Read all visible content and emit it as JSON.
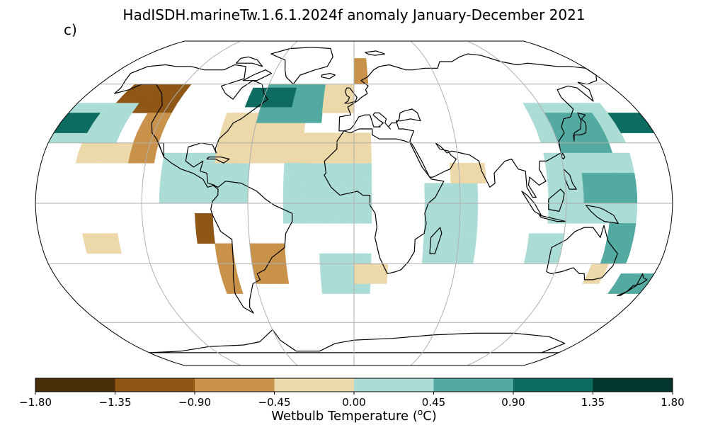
{
  "title": "HadISDH.marineTw.1.6.1.2024f anomaly January-December 2021",
  "panel_label": "c)",
  "colorbar": {
    "title_prefix": "Wetbulb Temperature (",
    "title_sup": "o",
    "title_suffix": "C)",
    "ticks": [
      "−1.80",
      "−1.35",
      "−0.90",
      "−0.45",
      "0.00",
      "0.45",
      "0.90",
      "1.35",
      "1.80"
    ],
    "bins": [
      {
        "range": [
          -1.8,
          -1.35
        ],
        "color": "#4a2e0a"
      },
      {
        "range": [
          -1.35,
          -0.9
        ],
        "color": "#8f5716"
      },
      {
        "range": [
          -0.9,
          -0.45
        ],
        "color": "#c8924a"
      },
      {
        "range": [
          -0.45,
          0.0
        ],
        "color": "#ecd8a8"
      },
      {
        "range": [
          0.0,
          0.45
        ],
        "color": "#abddd6"
      },
      {
        "range": [
          0.45,
          0.9
        ],
        "color": "#52aaa1"
      },
      {
        "range": [
          0.9,
          1.35
        ],
        "color": "#0e6b60"
      },
      {
        "range": [
          1.35,
          1.8
        ],
        "color": "#01352d"
      }
    ]
  },
  "map_data": {
    "projection": "Robinson",
    "variable": "wet bulb temperature anomaly",
    "grid_spacing_deg": 5,
    "graticule": {
      "lon_step": 60,
      "lat_step": 30
    },
    "cells": [
      {
        "lon_range": [
          -155,
          -115
        ],
        "lat_range": [
          45,
          60
        ],
        "level": -3
      },
      {
        "lon_range": [
          -130,
          -115
        ],
        "lat_range": [
          20,
          45
        ],
        "level": -2
      },
      {
        "lon_range": [
          -180,
          -140
        ],
        "lat_range": [
          30,
          50
        ],
        "level": 1
      },
      {
        "lon_range": [
          -180,
          -160
        ],
        "lat_range": [
          35,
          42
        ],
        "level": 3
      },
      {
        "lon_range": [
          -160,
          -130
        ],
        "lat_range": [
          20,
          30
        ],
        "level": -1
      },
      {
        "lon_range": [
          -155,
          -135
        ],
        "lat_range": [
          -25,
          -15
        ],
        "level": -1
      },
      {
        "lon_range": [
          -90,
          -80
        ],
        "lat_range": [
          -20,
          -5
        ],
        "level": -3
      },
      {
        "lon_range": [
          -80,
          -70
        ],
        "lat_range": [
          -45,
          -20
        ],
        "level": -2
      },
      {
        "lon_range": [
          -60,
          -40
        ],
        "lat_range": [
          -40,
          -20
        ],
        "level": -2
      },
      {
        "lon_range": [
          -110,
          -60
        ],
        "lat_range": [
          0,
          25
        ],
        "level": 1
      },
      {
        "lon_range": [
          -80,
          -30
        ],
        "lat_range": [
          20,
          45
        ],
        "level": -1
      },
      {
        "lon_range": [
          -60,
          -20
        ],
        "lat_range": [
          40,
          60
        ],
        "level": 2
      },
      {
        "lon_range": [
          -70,
          -40
        ],
        "lat_range": [
          48,
          55
        ],
        "level": 3
      },
      {
        "lon_range": [
          -20,
          0
        ],
        "lat_range": [
          45,
          60
        ],
        "level": -1
      },
      {
        "lon_range": [
          0,
          10
        ],
        "lat_range": [
          60,
          75
        ],
        "level": -2
      },
      {
        "lon_range": [
          -40,
          10
        ],
        "lat_range": [
          -10,
          20
        ],
        "level": 1
      },
      {
        "lon_range": [
          -30,
          10
        ],
        "lat_range": [
          20,
          35
        ],
        "level": -1
      },
      {
        "lon_range": [
          -20,
          10
        ],
        "lat_range": [
          -45,
          -25
        ],
        "level": 1
      },
      {
        "lon_range": [
          0,
          20
        ],
        "lat_range": [
          -40,
          -30
        ],
        "level": -1
      },
      {
        "lon_range": [
          40,
          70
        ],
        "lat_range": [
          -30,
          10
        ],
        "level": 1
      },
      {
        "lon_range": [
          55,
          75
        ],
        "lat_range": [
          10,
          20
        ],
        "level": -1
      },
      {
        "lon_range": [
          110,
          160
        ],
        "lat_range": [
          30,
          50
        ],
        "level": 1
      },
      {
        "lon_range": [
          120,
          150
        ],
        "lat_range": [
          25,
          45
        ],
        "level": 2
      },
      {
        "lon_range": [
          160,
          180
        ],
        "lat_range": [
          35,
          45
        ],
        "level": 3
      },
      {
        "lon_range": [
          110,
          160
        ],
        "lat_range": [
          -10,
          25
        ],
        "level": 1
      },
      {
        "lon_range": [
          130,
          160
        ],
        "lat_range": [
          0,
          15
        ],
        "level": 2
      },
      {
        "lon_range": [
          145,
          160
        ],
        "lat_range": [
          -30,
          -10
        ],
        "level": 2
      },
      {
        "lon_range": [
          100,
          120
        ],
        "lat_range": [
          -30,
          -15
        ],
        "level": 1
      },
      {
        "lon_range": [
          140,
          150
        ],
        "lat_range": [
          -40,
          -30
        ],
        "level": -1
      },
      {
        "lon_range": [
          160,
          180
        ],
        "lat_range": [
          -45,
          -35
        ],
        "level": 2
      }
    ]
  }
}
